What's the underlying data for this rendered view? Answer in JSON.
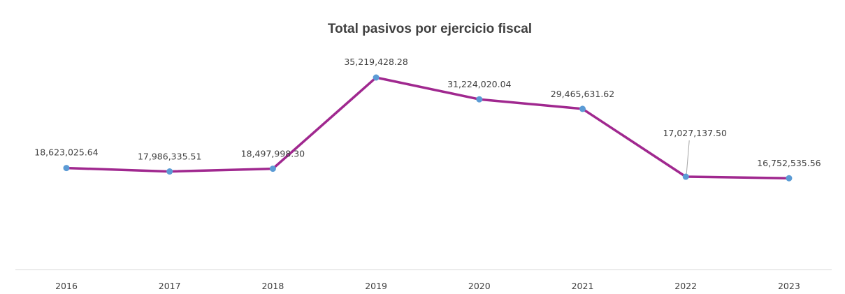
{
  "chart_data": {
    "type": "line",
    "title": "Total pasivos por ejercicio fiscal",
    "xlabel": "",
    "ylabel": "",
    "categories": [
      "2016",
      "2017",
      "2018",
      "2019",
      "2020",
      "2021",
      "2022",
      "2023"
    ],
    "series": [
      {
        "values": [
          18623025.64,
          17986335.51,
          18497998.3,
          35219428.28,
          31224020.04,
          29465631.62,
          17027137.5,
          16752535.56
        ],
        "labels": [
          "18,623,025.64",
          "17,986,335.51",
          "18,497,998.30",
          "35,219,428.28",
          "31,224,020.04",
          "29,465,631.62",
          "17,027,137.50",
          "16,752,535.56"
        ]
      }
    ],
    "ylim": [
      0,
      38000000
    ],
    "grid": false,
    "legend": "none",
    "colors": {
      "line": "#A0288F",
      "marker": "#5B9BD5",
      "axis": "#D9D9D9",
      "text": "#404040",
      "leader": "#A6A6A6"
    }
  }
}
